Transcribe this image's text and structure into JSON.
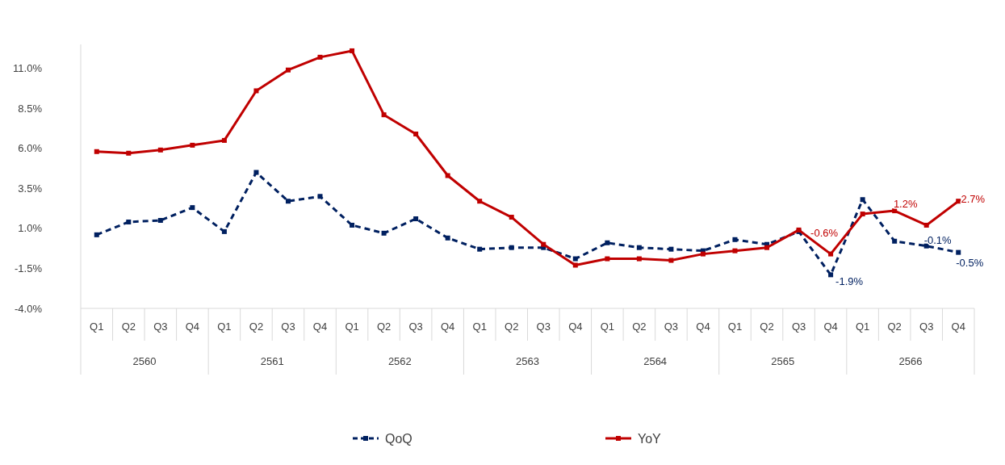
{
  "chart_data": {
    "type": "line",
    "categories": [
      "Q1",
      "Q2",
      "Q3",
      "Q4",
      "Q1",
      "Q2",
      "Q3",
      "Q4",
      "Q1",
      "Q2",
      "Q3",
      "Q4",
      "Q1",
      "Q2",
      "Q3",
      "Q4",
      "Q1",
      "Q2",
      "Q3",
      "Q4",
      "Q1",
      "Q2",
      "Q3",
      "Q4",
      "Q1",
      "Q2",
      "Q3",
      "Q4"
    ],
    "annotations": [
      "2560",
      "2561",
      "2562",
      "2563",
      "2564",
      "2565",
      "2566"
    ],
    "ylim": [
      -4,
      12.5
    ],
    "yticks": [
      {
        "value": -4,
        "label": "-4.0%"
      },
      {
        "value": -1.5,
        "label": "-1.5%"
      },
      {
        "value": 1,
        "label": "1.0%"
      },
      {
        "value": 3.5,
        "label": "3.5%"
      },
      {
        "value": 6,
        "label": "6.0%"
      },
      {
        "value": 8.5,
        "label": "8.5%"
      },
      {
        "value": 11,
        "label": "11.0%"
      }
    ],
    "grid": false,
    "legend": "bottom",
    "marker": "square",
    "series": [
      {
        "name": "QoQ",
        "color": "#002060",
        "line_style": "dashed",
        "values": [
          0.6,
          1.4,
          1.5,
          2.3,
          0.8,
          4.5,
          2.7,
          3.0,
          1.2,
          0.7,
          1.6,
          0.4,
          -0.3,
          -0.2,
          -0.2,
          -0.9,
          0.1,
          -0.2,
          -0.3,
          -0.4,
          0.3,
          0.0,
          0.8,
          -1.9,
          2.8,
          0.2,
          -0.1,
          -0.5
        ],
        "value_labels": [
          null,
          null,
          null,
          null,
          null,
          null,
          null,
          null,
          null,
          null,
          null,
          null,
          null,
          null,
          null,
          null,
          null,
          null,
          null,
          null,
          null,
          null,
          null,
          "-1.9%",
          null,
          null,
          "-0.1%",
          "-0.5%"
        ]
      },
      {
        "name": "YoY",
        "color": "#c00000",
        "line_style": "solid",
        "values": [
          5.8,
          5.7,
          5.9,
          6.2,
          6.5,
          9.6,
          10.9,
          11.7,
          12.1,
          8.1,
          6.9,
          4.3,
          2.7,
          1.7,
          0.0,
          -1.3,
          -0.9,
          -0.9,
          -1.0,
          -0.6,
          -0.4,
          -0.2,
          0.9,
          -0.6,
          1.9,
          2.1,
          1.2,
          2.7
        ],
        "value_labels": [
          null,
          null,
          null,
          null,
          null,
          null,
          null,
          null,
          null,
          null,
          null,
          null,
          null,
          null,
          null,
          null,
          null,
          null,
          null,
          null,
          null,
          null,
          null,
          "-0.6%",
          null,
          null,
          "1.2%",
          "2.7%"
        ]
      }
    ]
  }
}
